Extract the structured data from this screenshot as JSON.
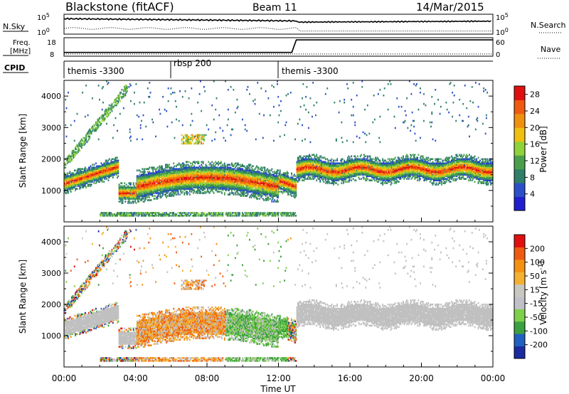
{
  "header": {
    "station": "Blackstone (fitACF)",
    "beam": "Beam 11",
    "date": "14/Mar/2015"
  },
  "labels": {
    "n_sky": "N.Sky",
    "n_search": "N.Search",
    "freq_line1": "Freq.",
    "freq_line2": "[MHz]",
    "nave": "Nave",
    "cpid": "CPID"
  },
  "ticks": {
    "n_top": "10^5",
    "n_bottom": "10^0",
    "freq_top": "18",
    "freq_bottom": "8",
    "nave_top": "60",
    "nave_bottom": "0"
  },
  "cpid": [
    {
      "label": "themis -3300"
    },
    {
      "label": "rbsp 200"
    },
    {
      "label": "themis -3300"
    }
  ],
  "colors": {
    "power": [
      "#1f1fd0",
      "#2a4fc8",
      "#2f7f6a",
      "#4aa04a",
      "#8fd23a",
      "#f0c010",
      "#f09010",
      "#f05a10",
      "#e01010"
    ],
    "velocity": [
      "#e01010",
      "#f05a10",
      "#f59010",
      "#f5b030",
      "#c8c8c0",
      "#c0c0c8",
      "#7ed04a",
      "#3aa040",
      "#2060c0",
      "#1a2aa0"
    ],
    "ground": "#c0c0c0"
  },
  "chart_data": [
    {
      "type": "heatmap",
      "panel": "power",
      "ylabel": "Slant Range [km]",
      "ylim": [
        0,
        4500
      ],
      "yticks": [
        "1000",
        "2000",
        "3000",
        "4000"
      ],
      "x": [
        "00:00",
        "04:00",
        "08:00",
        "12:00",
        "16:00",
        "20:00",
        "00:00"
      ],
      "colorbar_label": "Power [dB]",
      "colorbar_ticks": [
        "4",
        "8",
        "12",
        "16",
        "20",
        "24",
        "28"
      ],
      "crange": [
        0,
        30
      ]
    },
    {
      "type": "heatmap",
      "panel": "velocity",
      "ylabel": "Slant Range [km]",
      "ylim": [
        0,
        4500
      ],
      "yticks": [
        "1000",
        "2000",
        "3000",
        "4000"
      ],
      "xticks": [
        "00:00",
        "04:00",
        "08:00",
        "12:00",
        "16:00",
        "20:00",
        "00:00"
      ],
      "xlabel": "Time UT",
      "colorbar_label": "Velocity [m s^-1]",
      "colorbar_ticks": [
        "200",
        "100",
        "50",
        "15",
        "-15",
        "-50",
        "-100",
        "-200"
      ]
    }
  ]
}
